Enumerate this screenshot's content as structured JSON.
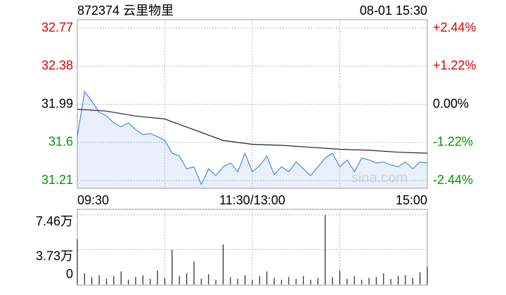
{
  "header": {
    "title": "872374 云里物里",
    "time": "08-01 15:30"
  },
  "watermark": "sina.com",
  "chart_data": [
    {
      "type": "line",
      "up_color": "#e00000",
      "down_color": "#009900",
      "flat_color": "#000000",
      "xlim": [
        0,
        240
      ],
      "xticks": [
        {
          "value": 0,
          "label": "09:30"
        },
        {
          "value": 120,
          "label": "11:30/13:00"
        },
        {
          "value": 240,
          "label": "15:00"
        }
      ],
      "ylim": [
        31.21,
        32.77
      ],
      "yticks": [
        31.21,
        31.6,
        31.99,
        32.38,
        32.77
      ],
      "y2lim": [
        -2.44,
        2.44
      ],
      "y2ticks": [
        {
          "value": -2.44,
          "label": "-2.44%"
        },
        {
          "value": -1.22,
          "label": "-1.22%"
        },
        {
          "value": 0,
          "label": "0.00%"
        },
        {
          "value": 1.22,
          "label": "+1.22%"
        },
        {
          "value": 2.44,
          "label": "+2.44%"
        }
      ],
      "grid": true,
      "series": [
        {
          "color": "#4a86e8",
          "x": [
            0,
            5,
            10,
            15,
            20,
            25,
            30,
            35,
            40,
            45,
            50,
            55,
            60,
            65,
            70,
            75,
            80,
            85,
            90,
            95,
            100,
            105,
            110,
            115,
            120,
            125,
            130,
            135,
            140,
            145,
            150,
            155,
            160,
            165,
            170,
            175,
            180,
            185,
            190,
            195,
            200,
            205,
            210,
            215,
            220,
            225,
            230,
            235,
            240
          ],
          "values": [
            31.66,
            32.12,
            32.02,
            31.91,
            31.87,
            31.8,
            31.76,
            31.8,
            31.73,
            31.68,
            31.69,
            31.66,
            31.62,
            31.49,
            31.46,
            31.33,
            31.35,
            31.17,
            31.33,
            31.26,
            31.35,
            31.39,
            31.3,
            31.49,
            31.3,
            31.36,
            31.46,
            31.27,
            31.35,
            31.3,
            31.4,
            31.33,
            31.26,
            31.35,
            31.44,
            31.49,
            31.35,
            31.42,
            31.3,
            31.44,
            31.42,
            31.39,
            31.4,
            31.37,
            31.35,
            31.4,
            31.33,
            31.4,
            31.39
          ]
        },
        {
          "color": "#222222",
          "x": [
            0,
            20,
            40,
            60,
            80,
            100,
            120,
            140,
            160,
            180,
            200,
            220,
            240
          ],
          "values": [
            31.94,
            31.92,
            31.87,
            31.84,
            31.73,
            31.62,
            31.58,
            31.57,
            31.55,
            31.53,
            31.52,
            31.5,
            31.49
          ]
        }
      ]
    },
    {
      "type": "bar",
      "color": "#222222",
      "xlim": [
        0,
        240
      ],
      "x": [
        0,
        5,
        10,
        15,
        20,
        25,
        30,
        35,
        40,
        45,
        50,
        55,
        60,
        65,
        70,
        75,
        80,
        85,
        90,
        95,
        100,
        105,
        110,
        115,
        120,
        125,
        130,
        135,
        140,
        145,
        150,
        155,
        160,
        165,
        170,
        175,
        180,
        185,
        190,
        195,
        200,
        205,
        210,
        215,
        220,
        225,
        230,
        235,
        240
      ],
      "values": [
        4.85,
        1.2,
        0.8,
        1.0,
        0.6,
        0.9,
        1.4,
        0.5,
        0.8,
        1.0,
        0.6,
        1.5,
        0.7,
        3.7,
        0.9,
        1.2,
        2.5,
        0.6,
        1.1,
        0.5,
        4.3,
        0.8,
        0.6,
        1.0,
        0.5,
        0.9,
        1.4,
        0.7,
        0.5,
        0.8,
        0.6,
        0.9,
        0.5,
        0.7,
        7.46,
        0.8,
        1.5,
        0.6,
        0.9,
        0.5,
        0.7,
        0.8,
        1.2,
        0.6,
        0.9,
        1.0,
        0.7,
        1.3,
        1.9
      ],
      "ylim": [
        0,
        7.46
      ],
      "yticks": [
        0,
        {
          "value": 3.73,
          "label": "3.73万"
        },
        {
          "value": 7.46,
          "label": "7.46万"
        }
      ]
    }
  ]
}
